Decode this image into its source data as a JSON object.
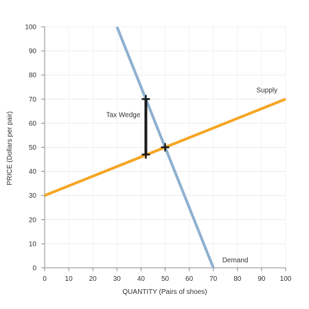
{
  "chart_data": {
    "type": "line",
    "xlabel": "QUANTITY (Pairs of shoes)",
    "ylabel": "PRICE (Dollars per pair)",
    "xlim": [
      0,
      100
    ],
    "ylim": [
      0,
      100
    ],
    "xticks": [
      0,
      10,
      20,
      30,
      40,
      50,
      60,
      70,
      80,
      90,
      100
    ],
    "yticks": [
      0,
      10,
      20,
      30,
      40,
      50,
      60,
      70,
      80,
      90,
      100
    ],
    "grid": true,
    "series": [
      {
        "name": "Supply",
        "color": "#f5a623",
        "points": [
          [
            0,
            30
          ],
          [
            100,
            70
          ]
        ]
      },
      {
        "name": "Demand",
        "color": "#8fb0d1",
        "points": [
          [
            30,
            100
          ],
          [
            70,
            0
          ]
        ]
      }
    ],
    "markers": [
      {
        "x": 42,
        "y": 70
      },
      {
        "x": 42,
        "y": 47
      },
      {
        "x": 50,
        "y": 50
      }
    ],
    "wedge": {
      "label": "Tax Wedge",
      "x": 42,
      "y_top": 70,
      "y_bottom": 47,
      "color": "#1a1a1a"
    }
  }
}
